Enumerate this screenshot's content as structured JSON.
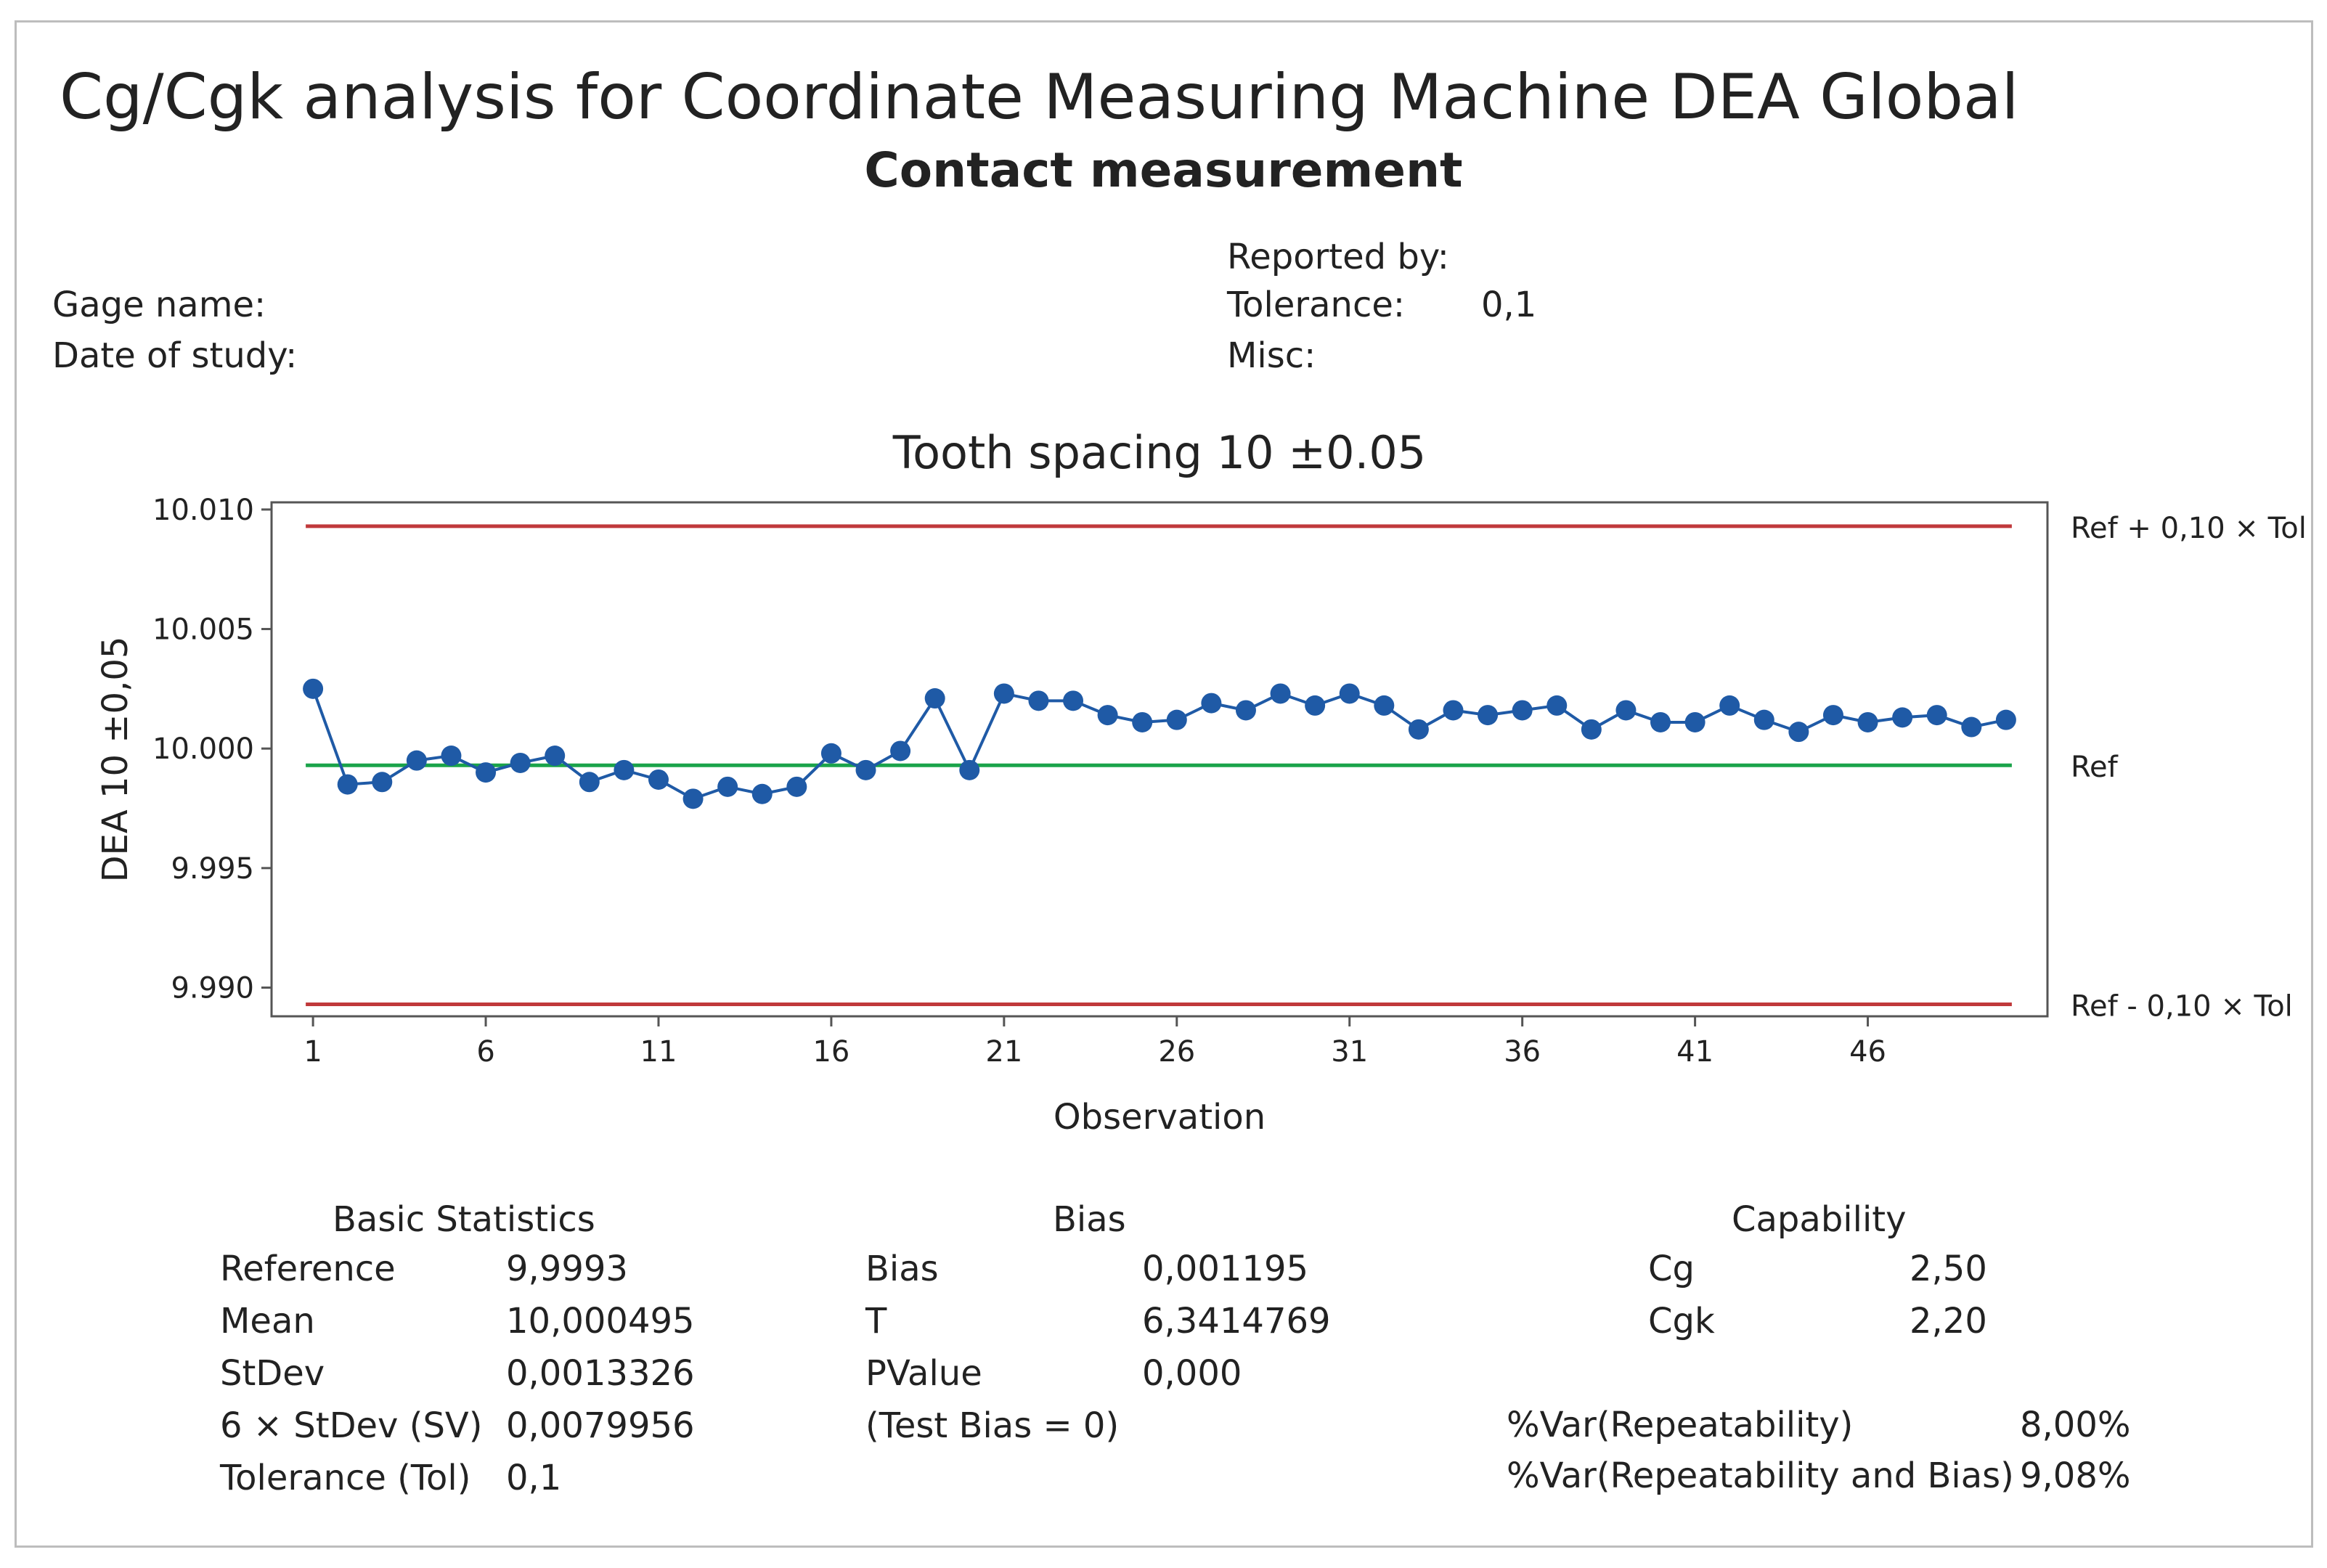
{
  "title": "Cg/Cgk analysis for Coordinate Measuring Machine DEA Global",
  "subtitle": "Contact measurement",
  "header_info": {
    "gage_name_label": "Gage name:",
    "date_label": "Date of study:",
    "reported_by_label": "Reported by:",
    "tolerance_label": "Tolerance:",
    "tolerance_value": "0,1",
    "misc_label": "Misc:"
  },
  "chart_data": {
    "type": "line",
    "title": "Tooth spacing 10 ±0.05",
    "xlabel": "Observation",
    "ylabel": "DEA 10 ±0,05",
    "x_ticks": [
      1,
      6,
      11,
      16,
      21,
      26,
      31,
      36,
      41,
      46
    ],
    "x_tick_labels": [
      "1",
      "6",
      "11",
      "16",
      "21",
      "26",
      "31",
      "36",
      "41",
      "46"
    ],
    "y_ticks": [
      9.99,
      9.995,
      10.0,
      10.005,
      10.01
    ],
    "y_tick_labels": [
      "9.990",
      "9.995",
      "10.000",
      "10.005",
      "10.010"
    ],
    "xlim": [
      -0.2,
      51.2
    ],
    "ylim": [
      9.9888,
      10.0103
    ],
    "reference": 9.9993,
    "upper_limit": 10.0093,
    "lower_limit": 9.9893,
    "reference_lines": [
      {
        "name": "upper",
        "value": 10.0093,
        "label": "Ref + 0,10 × Tol",
        "color": "#c0393b"
      },
      {
        "name": "ref",
        "value": 9.9993,
        "label": "Ref",
        "color": "#1aa34a"
      },
      {
        "name": "lower",
        "value": 9.9893,
        "label": "Ref - 0,10 × Tol",
        "color": "#c0393b"
      }
    ],
    "series": [
      {
        "name": "DEA 10 ±0,05",
        "color": "#1f5aa6",
        "x": [
          1,
          2,
          3,
          4,
          5,
          6,
          7,
          8,
          9,
          10,
          11,
          12,
          13,
          14,
          15,
          16,
          17,
          18,
          19,
          20,
          21,
          22,
          23,
          24,
          25,
          26,
          27,
          28,
          29,
          30,
          31,
          32,
          33,
          34,
          35,
          36,
          37,
          38,
          39,
          40,
          41,
          42,
          43,
          44,
          45,
          46,
          47,
          48,
          49,
          50
        ],
        "values": [
          10.0025,
          9.9985,
          9.9986,
          9.9995,
          9.9997,
          9.999,
          9.9994,
          9.9997,
          9.9986,
          9.9991,
          9.9987,
          9.9979,
          9.9984,
          9.9981,
          9.9984,
          9.9998,
          9.9991,
          9.9999,
          10.0021,
          9.9991,
          10.0023,
          10.002,
          10.002,
          10.0014,
          10.0011,
          10.0012,
          10.0019,
          10.0016,
          10.0023,
          10.0018,
          10.0023,
          10.0018,
          10.0008,
          10.0016,
          10.0014,
          10.0016,
          10.0018,
          10.0008,
          10.0016,
          10.0011,
          10.0011,
          10.0018,
          10.0012,
          10.0007,
          10.0014,
          10.0011,
          10.0013,
          10.0014,
          10.0009,
          10.0012
        ]
      }
    ]
  },
  "stats": {
    "basic": {
      "title": "Basic Statistics",
      "rows": [
        {
          "label": "Reference",
          "value": "9,9993"
        },
        {
          "label": "Mean",
          "value": "10,000495"
        },
        {
          "label": "StDev",
          "value": "0,0013326"
        },
        {
          "label": "6 × StDev (SV)",
          "value": "0,0079956"
        },
        {
          "label": "Tolerance (Tol)",
          "value": "0,1"
        }
      ]
    },
    "bias": {
      "title": "Bias",
      "rows": [
        {
          "label": "Bias",
          "value": "0,001195"
        },
        {
          "label": "T",
          "value": "6,3414769"
        },
        {
          "label": "PValue",
          "value": "0,000"
        },
        {
          "label": "(Test Bias = 0)",
          "value": ""
        }
      ]
    },
    "capability": {
      "title": "Capability",
      "rows": [
        {
          "label": "Cg",
          "value": "2,50"
        },
        {
          "label": "Cgk",
          "value": "2,20"
        }
      ],
      "var_rows": [
        {
          "label": "%Var(Repeatability)",
          "value": "8,00%"
        },
        {
          "label": "%Var(Repeatability and Bias)",
          "value": "9,08%"
        }
      ]
    }
  }
}
